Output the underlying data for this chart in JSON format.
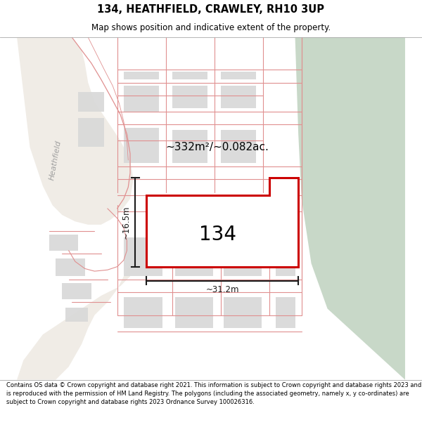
{
  "title_line1": "134, HEATHFIELD, CRAWLEY, RH10 3UP",
  "title_line2": "Map shows position and indicative extent of the property.",
  "footer_text": "Contains OS data © Crown copyright and database right 2021. This information is subject to Crown copyright and database rights 2023 and is reproduced with the permission of HM Land Registry. The polygons (including the associated geometry, namely x, y co-ordinates) are subject to Crown copyright and database rights 2023 Ordnance Survey 100026316.",
  "map_bg": "#f7f4f0",
  "green_color": "#c8d8c8",
  "plot_red": "#cc0000",
  "plot_fill": "#ffffff",
  "building_fill": "#d8d8d8",
  "line_pink": "#e09090",
  "line_dark": "#c87878",
  "dim_color": "#1a1a1a",
  "area_text": "~332m²/~0.082ac.",
  "width_text": "~31.2m",
  "height_text": "~16.5m",
  "road_label": "Heathfield",
  "label_134": "134"
}
